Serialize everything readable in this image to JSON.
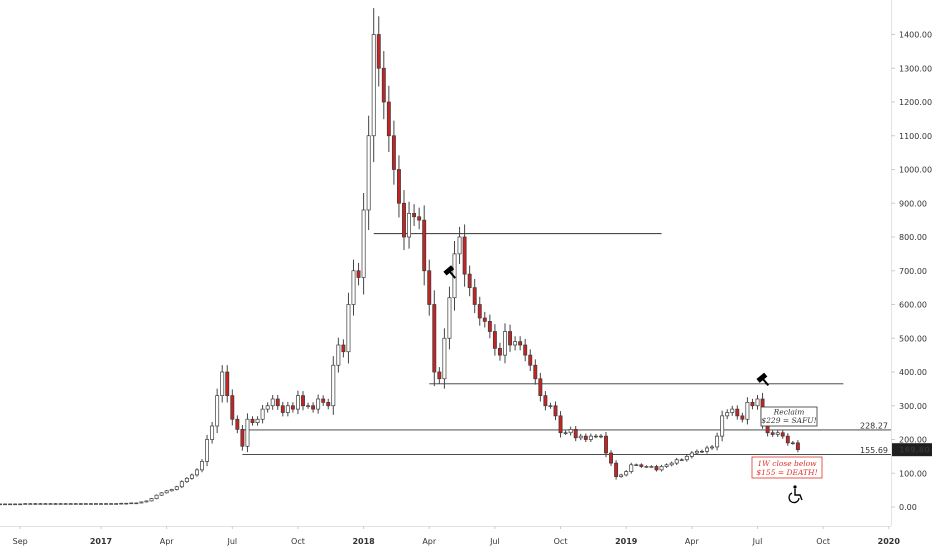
{
  "chart_data": {
    "type": "candlestick",
    "title": "",
    "xlabel": "",
    "ylabel": "",
    "ylim": [
      -90,
      1490
    ],
    "y_ticks": [
      "0.00",
      "100.00",
      "200.00",
      "300.00",
      "400.00",
      "500.00",
      "600.00",
      "700.00",
      "800.00",
      "900.00",
      "1000.00",
      "1100.00",
      "1200.00",
      "1300.00",
      "1400.00"
    ],
    "x_ticks": [
      {
        "label": "Sep",
        "idx": 4
      },
      {
        "label": "2017",
        "idx": 20
      },
      {
        "label": "Apr",
        "idx": 33
      },
      {
        "label": "Jul",
        "idx": 46
      },
      {
        "label": "Oct",
        "idx": 59
      },
      {
        "label": "2018",
        "idx": 72
      },
      {
        "label": "Apr",
        "idx": 85
      },
      {
        "label": "Jul",
        "idx": 98
      },
      {
        "label": "Oct",
        "idx": 111
      },
      {
        "label": "2019",
        "idx": 124
      },
      {
        "label": "Apr",
        "idx": 137
      },
      {
        "label": "Jul",
        "idx": 150
      },
      {
        "label": "Oct",
        "idx": 163
      },
      {
        "label": "2020",
        "idx": 176
      }
    ],
    "closes": [
      9,
      9,
      9,
      9,
      9,
      10,
      10,
      9,
      10,
      10,
      10,
      9,
      10,
      10,
      10,
      10,
      9,
      10,
      10,
      10,
      10,
      10,
      10,
      10,
      11,
      11,
      12,
      12,
      15,
      18,
      25,
      35,
      42,
      48,
      52,
      60,
      75,
      85,
      95,
      110,
      135,
      200,
      240,
      330,
      400,
      330,
      260,
      230,
      180,
      260,
      250,
      260,
      290,
      300,
      320,
      300,
      280,
      300,
      290,
      330,
      300,
      300,
      290,
      320,
      310,
      300,
      420,
      480,
      460,
      600,
      700,
      680,
      880,
      1100,
      1400,
      1300,
      1200,
      1100,
      1000,
      900,
      800,
      870,
      860,
      850,
      700,
      600,
      400,
      380,
      500,
      620,
      750,
      800,
      690,
      650,
      600,
      560,
      550,
      520,
      470,
      450,
      520,
      480,
      490,
      480,
      450,
      420,
      380,
      330,
      300,
      300,
      270,
      220,
      220,
      230,
      205,
      210,
      200,
      210,
      210,
      210,
      160,
      130,
      90,
      95,
      105,
      125,
      125,
      120,
      120,
      120,
      110,
      120,
      125,
      130,
      140,
      140,
      150,
      160,
      165,
      165,
      175,
      178,
      210,
      270,
      280,
      290,
      270,
      260,
      310,
      300,
      320,
      250,
      220,
      215,
      220,
      210,
      190,
      190,
      170
    ],
    "markers": [
      {
        "type": "arrow-down",
        "at_idx": 74
      },
      {
        "type": "gavel",
        "at_idx": 89
      },
      {
        "type": "gavel",
        "at_idx": 151
      }
    ],
    "levels": [
      {
        "value": 810,
        "from_idx": 74,
        "to_idx": 131
      },
      {
        "value": 365,
        "from_idx": 85,
        "to_idx": 167
      },
      {
        "value": 228.27,
        "from_idx": 48,
        "label": "228.27"
      },
      {
        "value": 155.69,
        "from_idx": 48,
        "label": "155.69"
      }
    ],
    "last_price_label": "169.80",
    "annotations": [
      {
        "lines": [
          "Reclaim",
          "$229 = SAFU!"
        ],
        "color": "#333333"
      },
      {
        "lines": [
          "1W close below",
          "$155 = DEATH!"
        ],
        "color": "#e0302a"
      }
    ],
    "colors": {
      "up": "#ffffff",
      "down": "#c42424",
      "wick": "#444444",
      "outline": "#3b3b3b",
      "price_tag": "#1f1f1f"
    },
    "icon": "wheelchair-icon"
  }
}
